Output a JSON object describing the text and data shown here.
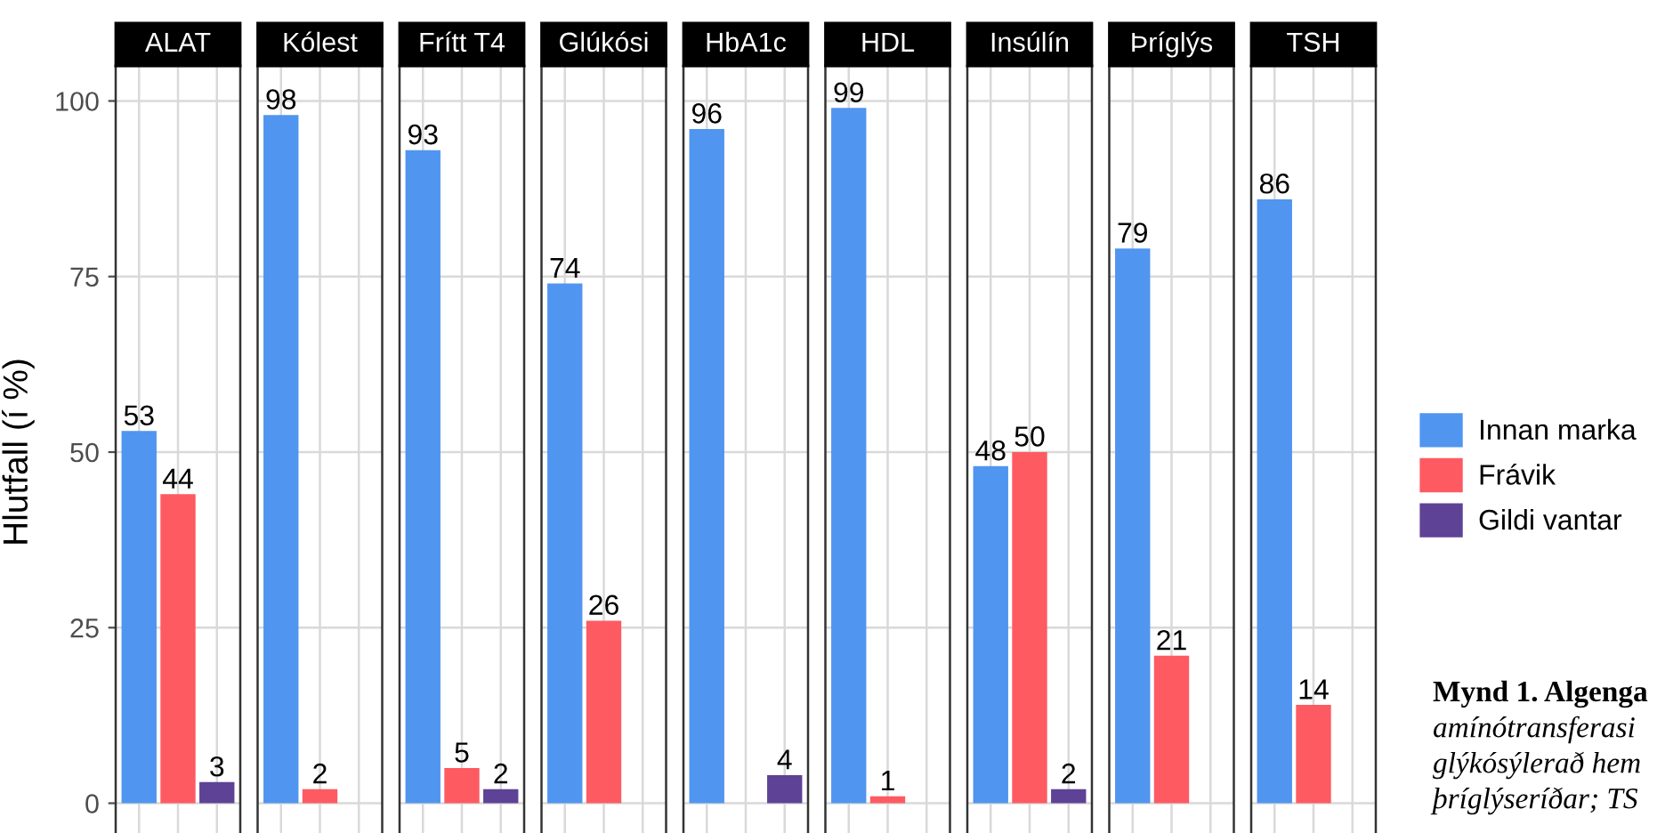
{
  "chart_data": {
    "type": "bar",
    "categories": [
      "ALAT",
      "Kólest",
      "Frítt T4",
      "Glúkósi",
      "HbA1c",
      "HDL",
      "Insúlín",
      "Þríglýs",
      "TSH"
    ],
    "ylim": [
      -5,
      105
    ],
    "yticks": [
      0,
      25,
      50,
      75,
      100
    ],
    "ylabel": "Hlutfall (í %)",
    "grid": true,
    "data_labels": true,
    "legend": "right",
    "annotations": [
      "Mynd 1. Algenga",
      "amínótransferasi",
      "glýkósýlerað hem",
      "þríglýseríðar; TS"
    ],
    "series": [
      {
        "name": "Innan marka",
        "color": "#5095f0",
        "values": [
          53,
          98,
          93,
          74,
          96,
          99,
          48,
          79,
          86
        ]
      },
      {
        "name": "Frávik",
        "color": "#fe5a62",
        "values": [
          44,
          2,
          5,
          26,
          null,
          1,
          50,
          21,
          14
        ]
      },
      {
        "name": "Gildi vantar",
        "color": "#5e4296",
        "values": [
          3,
          null,
          2,
          null,
          4,
          null,
          2,
          null,
          null
        ]
      }
    ]
  }
}
